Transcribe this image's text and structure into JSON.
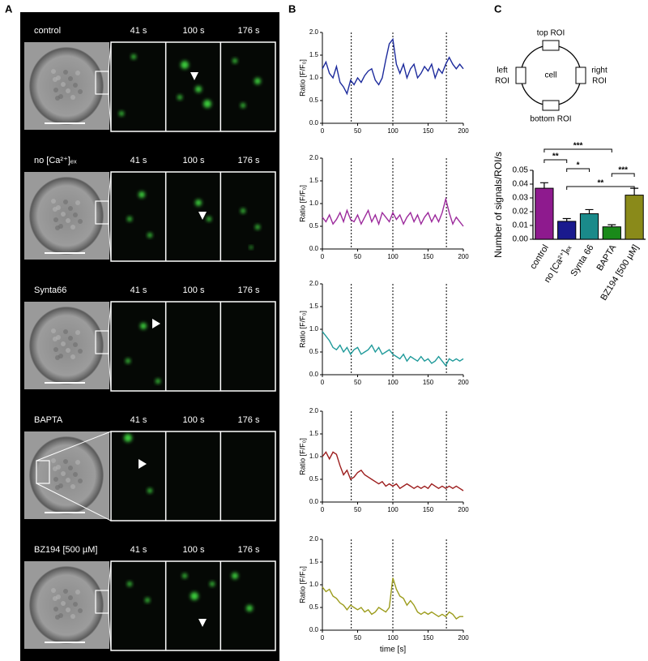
{
  "panel_a": {
    "letter": "A",
    "rows": [
      {
        "label": "control",
        "times": [
          "41 s",
          "100 s",
          "176 s"
        ]
      },
      {
        "label": "no [Ca²⁺]ₑₓ",
        "times": [
          "41 s",
          "100 s",
          "176 s"
        ]
      },
      {
        "label": "Synta66",
        "times": [
          "41 s",
          "100 s",
          "176 s"
        ]
      },
      {
        "label": "BAPTA",
        "times": [
          "41 s",
          "100 s",
          "176 s"
        ]
      },
      {
        "label": "BZ194 [500 µM]",
        "times": [
          "41 s",
          "100 s",
          "176 s"
        ]
      }
    ]
  },
  "panel_b": {
    "letter": "B"
  },
  "panel_c": {
    "letter": "C",
    "diagram": {
      "top": "top ROI",
      "left": [
        "left",
        "ROI"
      ],
      "center": "cell",
      "right": [
        "right",
        "ROI"
      ],
      "bottom": "bottom ROI"
    }
  },
  "chart_data": [
    {
      "type": "line",
      "ylabel": "Ratio [F/F₀]",
      "color": "#1c2a9c",
      "xlim": [
        0,
        200
      ],
      "ylim": [
        0,
        2
      ],
      "xticks": [
        0,
        50,
        100,
        150,
        200
      ],
      "yticks": [
        {
          "value": 0,
          "label": "0.0"
        },
        {
          "value": 0.5,
          "label": "0.5"
        },
        {
          "value": 1,
          "label": "1.0"
        },
        {
          "value": 1.5,
          "label": "1.5"
        },
        {
          "value": 2,
          "label": "2.0"
        }
      ],
      "markers": [
        41,
        100,
        176
      ],
      "x": [
        0,
        5,
        10,
        15,
        20,
        25,
        30,
        35,
        40,
        45,
        50,
        55,
        60,
        65,
        70,
        75,
        80,
        85,
        90,
        95,
        100,
        105,
        110,
        115,
        120,
        125,
        130,
        135,
        140,
        145,
        150,
        155,
        160,
        165,
        170,
        175,
        180,
        185,
        190,
        195,
        200
      ],
      "values": [
        1.2,
        1.35,
        1.1,
        1.0,
        1.25,
        0.9,
        0.8,
        0.65,
        0.95,
        0.85,
        1.0,
        0.9,
        1.05,
        1.15,
        1.2,
        0.95,
        0.85,
        1.0,
        1.4,
        1.75,
        1.85,
        1.3,
        1.1,
        1.3,
        1.0,
        1.2,
        1.3,
        1.0,
        1.1,
        1.25,
        1.15,
        1.3,
        1.0,
        1.2,
        1.1,
        1.3,
        1.45,
        1.3,
        1.2,
        1.3,
        1.2
      ]
    },
    {
      "type": "line",
      "ylabel": "Ratio [F/F₀]",
      "color": "#9c2a9c",
      "xlim": [
        0,
        200
      ],
      "ylim": [
        0,
        2
      ],
      "xticks": [
        0,
        50,
        100,
        150,
        200
      ],
      "yticks": [
        {
          "value": 0,
          "label": "0.0"
        },
        {
          "value": 0.5,
          "label": "0.5"
        },
        {
          "value": 1,
          "label": "1.0"
        },
        {
          "value": 1.5,
          "label": "1.5"
        },
        {
          "value": 2,
          "label": "2.0"
        }
      ],
      "markers": [
        41,
        100,
        176
      ],
      "x": [
        0,
        5,
        10,
        15,
        20,
        25,
        30,
        35,
        40,
        45,
        50,
        55,
        60,
        65,
        70,
        75,
        80,
        85,
        90,
        95,
        100,
        105,
        110,
        115,
        120,
        125,
        130,
        135,
        140,
        145,
        150,
        155,
        160,
        165,
        170,
        175,
        180,
        185,
        190,
        195,
        200
      ],
      "values": [
        0.7,
        0.6,
        0.75,
        0.55,
        0.65,
        0.8,
        0.6,
        0.85,
        0.65,
        0.6,
        0.75,
        0.55,
        0.7,
        0.85,
        0.6,
        0.75,
        0.55,
        0.8,
        0.7,
        0.6,
        0.8,
        0.65,
        0.75,
        0.55,
        0.7,
        0.8,
        0.6,
        0.75,
        0.55,
        0.7,
        0.8,
        0.6,
        0.75,
        0.6,
        0.8,
        1.1,
        0.8,
        0.55,
        0.7,
        0.6,
        0.5
      ]
    },
    {
      "type": "line",
      "ylabel": "Ratio [F/F₀]",
      "color": "#1f9a9a",
      "xlim": [
        0,
        200
      ],
      "ylim": [
        0,
        2
      ],
      "xticks": [
        0,
        50,
        100,
        150,
        200
      ],
      "yticks": [
        {
          "value": 0,
          "label": "0.0"
        },
        {
          "value": 0.5,
          "label": "0.5"
        },
        {
          "value": 1,
          "label": "1.0"
        },
        {
          "value": 1.5,
          "label": "1.5"
        },
        {
          "value": 2,
          "label": "2.0"
        }
      ],
      "markers": [
        41,
        100,
        176
      ],
      "x": [
        0,
        5,
        10,
        15,
        20,
        25,
        30,
        35,
        40,
        45,
        50,
        55,
        60,
        65,
        70,
        75,
        80,
        85,
        90,
        95,
        100,
        105,
        110,
        115,
        120,
        125,
        130,
        135,
        140,
        145,
        150,
        155,
        160,
        165,
        170,
        175,
        180,
        185,
        190,
        195,
        200
      ],
      "values": [
        0.95,
        0.85,
        0.75,
        0.6,
        0.55,
        0.65,
        0.5,
        0.6,
        0.45,
        0.55,
        0.6,
        0.45,
        0.5,
        0.55,
        0.65,
        0.5,
        0.6,
        0.45,
        0.5,
        0.55,
        0.45,
        0.4,
        0.35,
        0.45,
        0.3,
        0.4,
        0.35,
        0.3,
        0.4,
        0.3,
        0.35,
        0.25,
        0.3,
        0.4,
        0.3,
        0.2,
        0.35,
        0.3,
        0.35,
        0.3,
        0.35
      ]
    },
    {
      "type": "line",
      "ylabel": "Ratio [F/F₀]",
      "color": "#9c1c1c",
      "xlim": [
        0,
        200
      ],
      "ylim": [
        0,
        2
      ],
      "xticks": [
        0,
        50,
        100,
        150,
        200
      ],
      "yticks": [
        {
          "value": 0,
          "label": "0.0"
        },
        {
          "value": 0.5,
          "label": "0.5"
        },
        {
          "value": 1,
          "label": "1.0"
        },
        {
          "value": 1.5,
          "label": "1.5"
        },
        {
          "value": 2,
          "label": "2.0"
        }
      ],
      "markers": [
        41,
        100,
        176
      ],
      "x": [
        0,
        5,
        10,
        15,
        20,
        25,
        30,
        35,
        40,
        45,
        50,
        55,
        60,
        65,
        70,
        75,
        80,
        85,
        90,
        95,
        100,
        105,
        110,
        115,
        120,
        125,
        130,
        135,
        140,
        145,
        150,
        155,
        160,
        165,
        170,
        175,
        180,
        185,
        190,
        195,
        200
      ],
      "values": [
        1.0,
        1.1,
        0.95,
        1.1,
        1.05,
        0.8,
        0.6,
        0.7,
        0.5,
        0.55,
        0.65,
        0.7,
        0.6,
        0.55,
        0.5,
        0.45,
        0.4,
        0.45,
        0.35,
        0.4,
        0.35,
        0.4,
        0.3,
        0.35,
        0.4,
        0.35,
        0.3,
        0.35,
        0.3,
        0.35,
        0.3,
        0.4,
        0.35,
        0.3,
        0.35,
        0.3,
        0.35,
        0.3,
        0.35,
        0.3,
        0.25
      ]
    },
    {
      "type": "line",
      "ylabel": "Ratio [F/F₀]",
      "xlabel": "time [s]",
      "color": "#9c9c1c",
      "xlim": [
        0,
        200
      ],
      "ylim": [
        0,
        2
      ],
      "xticks": [
        0,
        50,
        100,
        150,
        200
      ],
      "yticks": [
        {
          "value": 0,
          "label": "0.0"
        },
        {
          "value": 0.5,
          "label": "0.5"
        },
        {
          "value": 1,
          "label": "1.0"
        },
        {
          "value": 1.5,
          "label": "1.5"
        },
        {
          "value": 2,
          "label": "2.0"
        }
      ],
      "markers": [
        41,
        100,
        176
      ],
      "x": [
        0,
        5,
        10,
        15,
        20,
        25,
        30,
        35,
        40,
        45,
        50,
        55,
        60,
        65,
        70,
        75,
        80,
        85,
        90,
        95,
        100,
        105,
        110,
        115,
        120,
        125,
        130,
        135,
        140,
        145,
        150,
        155,
        160,
        165,
        170,
        175,
        180,
        185,
        190,
        195,
        200
      ],
      "values": [
        0.95,
        0.85,
        0.9,
        0.75,
        0.7,
        0.6,
        0.55,
        0.45,
        0.55,
        0.5,
        0.45,
        0.5,
        0.4,
        0.45,
        0.35,
        0.4,
        0.5,
        0.45,
        0.4,
        0.5,
        1.15,
        0.9,
        0.75,
        0.7,
        0.55,
        0.65,
        0.55,
        0.4,
        0.35,
        0.4,
        0.35,
        0.4,
        0.35,
        0.3,
        0.35,
        0.3,
        0.4,
        0.35,
        0.25,
        0.3,
        0.3
      ]
    },
    {
      "type": "bar",
      "ylabel": "Number of signals/ROI/s",
      "categories": [
        "control",
        "no [Ca²⁺]ₑₓ",
        "Synta 66",
        "BAPTA",
        "BZ194 [500 µM]"
      ],
      "values": [
        0.037,
        0.013,
        0.0185,
        0.009,
        0.032
      ],
      "errors": [
        0.004,
        0.002,
        0.003,
        0.0015,
        0.005
      ],
      "colors": [
        "#8e1a8e",
        "#1a1a8e",
        "#1a8a8a",
        "#1a8a1a",
        "#8a8a1a"
      ],
      "ylim": [
        0,
        0.05
      ],
      "yticks": [
        {
          "value": 0,
          "label": "0.00"
        },
        {
          "value": 0.01,
          "label": "0.01"
        },
        {
          "value": 0.02,
          "label": "0.02"
        },
        {
          "value": 0.03,
          "label": "0.03"
        },
        {
          "value": 0.04,
          "label": "0.04"
        },
        {
          "value": 0.05,
          "label": "0.05"
        }
      ],
      "annotations": [
        {
          "label": "***",
          "from": "control",
          "to": "BAPTA"
        },
        {
          "label": "**",
          "from": "control",
          "to": "no [Ca²⁺]ₑₓ"
        },
        {
          "label": "*",
          "from": "no [Ca²⁺]ₑₓ",
          "to": "Synta 66"
        },
        {
          "label": "***",
          "from": "BAPTA",
          "to": "BZ194 [500 µM]"
        },
        {
          "label": "**",
          "from": "no [Ca²⁺]ₑₓ",
          "to": "BZ194 [500 µM]"
        }
      ]
    }
  ]
}
